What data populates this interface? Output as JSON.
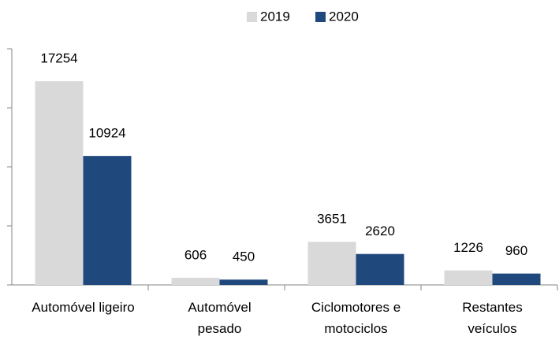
{
  "chart_data": {
    "type": "bar",
    "categories": [
      "Automóvel ligeiro",
      "Automóvel\npesado",
      "Ciclomotores e\nmotociclos",
      "Restantes\nveículos"
    ],
    "series": [
      {
        "name": "2019",
        "color": "#d9d9d9",
        "values": [
          17254,
          606,
          3651,
          1226
        ]
      },
      {
        "name": "2020",
        "color": "#1f497d",
        "values": [
          10924,
          450,
          2620,
          960
        ]
      }
    ],
    "ylim": [
      0,
      20000
    ],
    "yticks": [
      0,
      5000,
      10000,
      15000,
      20000
    ],
    "legend": "top"
  }
}
